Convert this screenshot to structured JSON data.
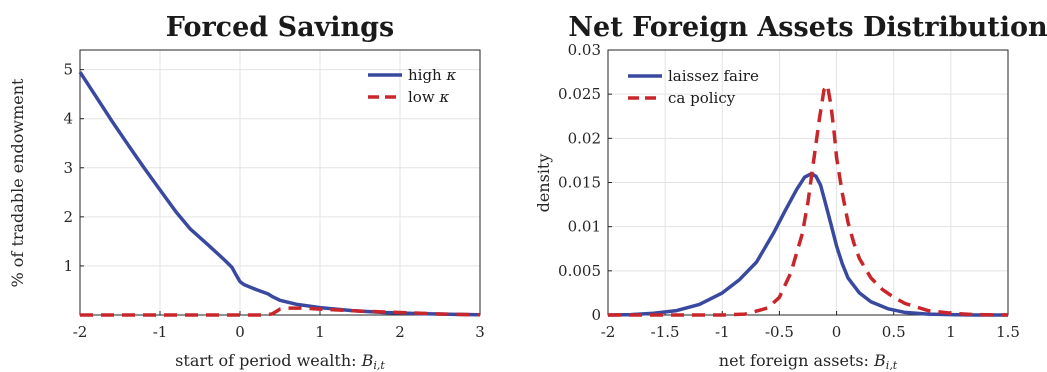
{
  "chart_data": [
    {
      "type": "line",
      "title": "Forced Savings",
      "xlabel": "start of period wealth: ",
      "xlabel_math": "B",
      "xlabel_sub": "i,t",
      "ylabel": "% of tradable endowment",
      "xlim": [
        -2,
        3
      ],
      "ylim": [
        0,
        5.4
      ],
      "xticks": [
        -2,
        -1,
        0,
        1,
        2,
        3
      ],
      "yticks": [
        1,
        2,
        3,
        4,
        5
      ],
      "xtick_labels": [
        "-2",
        "-1",
        "0",
        "1",
        "2",
        "3"
      ],
      "ytick_labels": [
        "1",
        "2",
        "3",
        "4",
        "5"
      ],
      "grid": true,
      "legend_position": "top-right",
      "series": [
        {
          "name": "high ",
          "name_math": "κ",
          "color": "#3a49a0",
          "dash": "solid",
          "x": [
            -2,
            -1.8,
            -1.6,
            -1.4,
            -1.2,
            -1.0,
            -0.8,
            -0.62,
            -0.4,
            -0.2,
            -0.1,
            -0.05,
            0,
            0.05,
            0.2,
            0.35,
            0.4,
            0.5,
            0.7,
            1.0,
            1.4,
            1.8,
            2.2,
            2.6,
            3.0
          ],
          "y": [
            4.95,
            4.45,
            3.95,
            3.47,
            3.0,
            2.55,
            2.1,
            1.75,
            1.43,
            1.13,
            0.97,
            0.82,
            0.68,
            0.62,
            0.52,
            0.43,
            0.38,
            0.3,
            0.22,
            0.15,
            0.09,
            0.05,
            0.03,
            0.015,
            0.005
          ]
        },
        {
          "name": "low ",
          "name_math": "κ",
          "color": "#c8262b",
          "dash": "dashed",
          "x": [
            -2,
            -1.0,
            0,
            0.3,
            0.4,
            0.45,
            0.5,
            0.6,
            0.8,
            1.0,
            1.5,
            2.0,
            2.5,
            3.0
          ],
          "y": [
            0,
            0,
            0,
            0,
            0.02,
            0.07,
            0.12,
            0.14,
            0.14,
            0.12,
            0.08,
            0.05,
            0.02,
            0.005
          ]
        }
      ]
    },
    {
      "type": "line",
      "title": "Net Foreign Assets Distribution",
      "xlabel": "net foreign assets: ",
      "xlabel_math": "B",
      "xlabel_sub": "i,t",
      "ylabel": "density",
      "xlim": [
        -2,
        1.5
      ],
      "ylim": [
        0,
        0.03
      ],
      "xticks": [
        -2,
        -1.5,
        -1,
        -0.5,
        0,
        0.5,
        1,
        1.5
      ],
      "yticks": [
        0,
        0.005,
        0.01,
        0.015,
        0.02,
        0.025,
        0.03
      ],
      "xtick_labels": [
        "-2",
        "-1.5",
        "-1",
        "-0.5",
        "0",
        "0.5",
        "1",
        "1.5"
      ],
      "ytick_labels": [
        "0",
        "0.005",
        "0.01",
        "0.015",
        "0.02",
        "0.025",
        "0.03"
      ],
      "grid": true,
      "legend_position": "top-left",
      "series": [
        {
          "name": "laissez faire",
          "color": "#3a49a0",
          "dash": "solid",
          "x": [
            -2.0,
            -1.8,
            -1.6,
            -1.4,
            -1.2,
            -1.0,
            -0.85,
            -0.7,
            -0.55,
            -0.45,
            -0.35,
            -0.28,
            -0.22,
            -0.18,
            -0.14,
            -0.1,
            -0.05,
            0.0,
            0.05,
            0.1,
            0.2,
            0.3,
            0.45,
            0.6,
            0.8,
            1.0,
            1.2,
            1.5
          ],
          "y": [
            0.0,
            5e-05,
            0.0002,
            0.0005,
            0.0012,
            0.0025,
            0.004,
            0.006,
            0.0093,
            0.0118,
            0.0142,
            0.0156,
            0.016,
            0.0157,
            0.0147,
            0.0128,
            0.0103,
            0.0078,
            0.0058,
            0.0042,
            0.0025,
            0.0015,
            0.0007,
            0.0003,
            0.0001,
            4e-05,
            0.0,
            0.0
          ]
        },
        {
          "name": "ca policy",
          "color": "#c8262b",
          "dash": "dashed",
          "x": [
            -2.0,
            -1.5,
            -1.0,
            -0.8,
            -0.6,
            -0.5,
            -0.4,
            -0.3,
            -0.25,
            -0.2,
            -0.15,
            -0.11,
            -0.08,
            -0.05,
            -0.02,
            0.0,
            0.05,
            0.1,
            0.15,
            0.2,
            0.3,
            0.4,
            0.5,
            0.6,
            0.8,
            1.0,
            1.2,
            1.5
          ],
          "y": [
            0.0,
            0.0,
            0.0,
            0.0001,
            0.0008,
            0.002,
            0.0048,
            0.0092,
            0.0128,
            0.0175,
            0.0222,
            0.0255,
            0.026,
            0.0238,
            0.0205,
            0.0178,
            0.0138,
            0.0105,
            0.0082,
            0.0064,
            0.0042,
            0.0029,
            0.002,
            0.0013,
            0.0005,
            0.0002,
            5e-05,
            0.0
          ]
        }
      ]
    }
  ]
}
